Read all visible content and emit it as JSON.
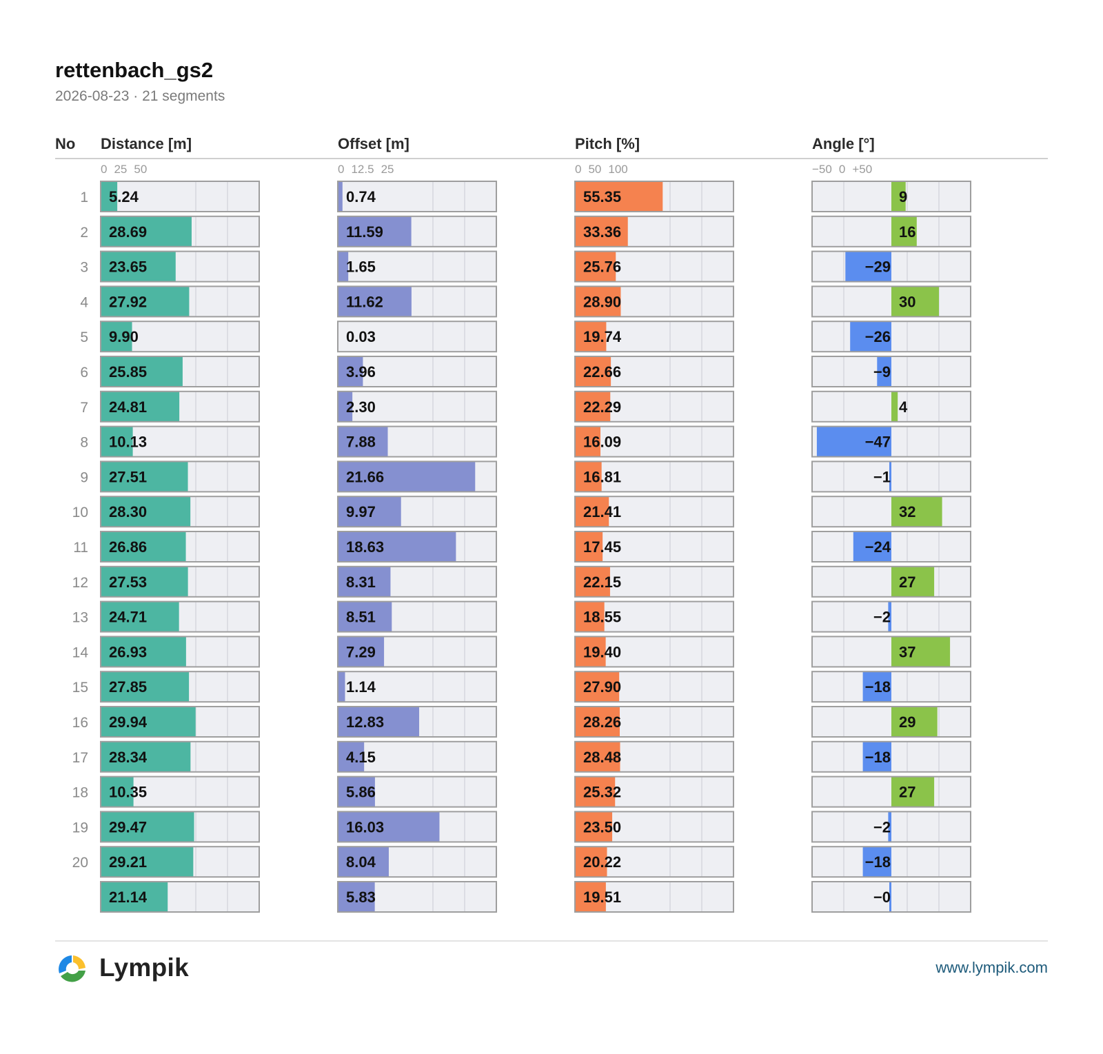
{
  "header": {
    "title": "rettenbach_gs2",
    "subtitle": "2026-08-23 · 21 segments"
  },
  "footer": {
    "brand": "Lympik",
    "website": "www.lympik.com"
  },
  "chart_data": {
    "type": "bar",
    "row_label_header": "No",
    "rows": [
      "1",
      "2",
      "3",
      "4",
      "5",
      "6",
      "7",
      "8",
      "9",
      "10",
      "11",
      "12",
      "13",
      "14",
      "15",
      "16",
      "17",
      "18",
      "19",
      "20",
      ""
    ],
    "grid": true,
    "columns": [
      {
        "key": "distance",
        "header": "Distance [m]",
        "ticks": [
          "0",
          "25",
          "50"
        ],
        "tick_values": [
          0,
          25,
          50
        ],
        "range": [
          0,
          50
        ],
        "color": "#4db6a2",
        "values": [
          5.24,
          28.69,
          23.65,
          27.92,
          9.9,
          25.85,
          24.81,
          10.13,
          27.51,
          28.3,
          26.86,
          27.53,
          24.71,
          26.93,
          27.85,
          29.94,
          28.34,
          10.35,
          29.47,
          29.21,
          21.14
        ],
        "labels": [
          "5.24",
          "28.69",
          "23.65",
          "27.92",
          "9.90",
          "25.85",
          "24.81",
          "10.13",
          "27.51",
          "28.30",
          "26.86",
          "27.53",
          "24.71",
          "26.93",
          "27.85",
          "29.94",
          "28.34",
          "10.35",
          "29.47",
          "29.21",
          "21.14"
        ]
      },
      {
        "key": "offset",
        "header": "Offset [m]",
        "ticks": [
          "0",
          "12.5",
          "25"
        ],
        "tick_values": [
          0,
          12.5,
          25
        ],
        "range": [
          0,
          25
        ],
        "color": "#8590d0",
        "values": [
          0.74,
          11.59,
          1.65,
          11.62,
          0.03,
          3.96,
          2.3,
          7.88,
          21.66,
          9.97,
          18.63,
          8.31,
          8.51,
          7.29,
          1.14,
          12.83,
          4.15,
          5.86,
          16.03,
          8.04,
          5.83
        ],
        "labels": [
          "0.74",
          "11.59",
          "1.65",
          "11.62",
          "0.03",
          "3.96",
          "2.30",
          "7.88",
          "21.66",
          "9.97",
          "18.63",
          "8.31",
          "8.51",
          "7.29",
          "1.14",
          "12.83",
          "4.15",
          "5.86",
          "16.03",
          "8.04",
          "5.83"
        ]
      },
      {
        "key": "pitch",
        "header": "Pitch [%]",
        "ticks": [
          "0",
          "50",
          "100"
        ],
        "tick_values": [
          0,
          50,
          100
        ],
        "range": [
          0,
          100
        ],
        "color": "#f5824f",
        "values": [
          55.35,
          33.36,
          25.76,
          28.9,
          19.74,
          22.66,
          22.29,
          16.09,
          16.81,
          21.41,
          17.45,
          22.15,
          18.55,
          19.4,
          27.9,
          28.26,
          28.48,
          25.32,
          23.5,
          20.22,
          19.51
        ],
        "labels": [
          "55.35",
          "33.36",
          "25.76",
          "28.90",
          "19.74",
          "22.66",
          "22.29",
          "16.09",
          "16.81",
          "21.41",
          "17.45",
          "22.15",
          "18.55",
          "19.40",
          "27.90",
          "28.26",
          "28.48",
          "25.32",
          "23.50",
          "20.22",
          "19.51"
        ]
      },
      {
        "key": "angle",
        "header": "Angle [°]",
        "ticks": [
          "−50",
          "0",
          "+50"
        ],
        "tick_values": [
          -50,
          0,
          50
        ],
        "range": [
          -50,
          50
        ],
        "diverging": true,
        "color_positive": "#8bc34a",
        "color_negative": "#5b8def",
        "values": [
          9,
          16,
          -29,
          30,
          -26,
          -9,
          4,
          -47,
          -1,
          32,
          -24,
          27,
          -2,
          37,
          -18,
          29,
          -18,
          27,
          -2,
          -18,
          -0.3
        ],
        "labels": [
          "9",
          "16",
          "−29",
          "30",
          "−26",
          "−9",
          "4",
          "−47",
          "−1",
          "32",
          "−24",
          "27",
          "−2",
          "37",
          "−18",
          "29",
          "−18",
          "27",
          "−2",
          "−18",
          "−0"
        ]
      }
    ]
  }
}
